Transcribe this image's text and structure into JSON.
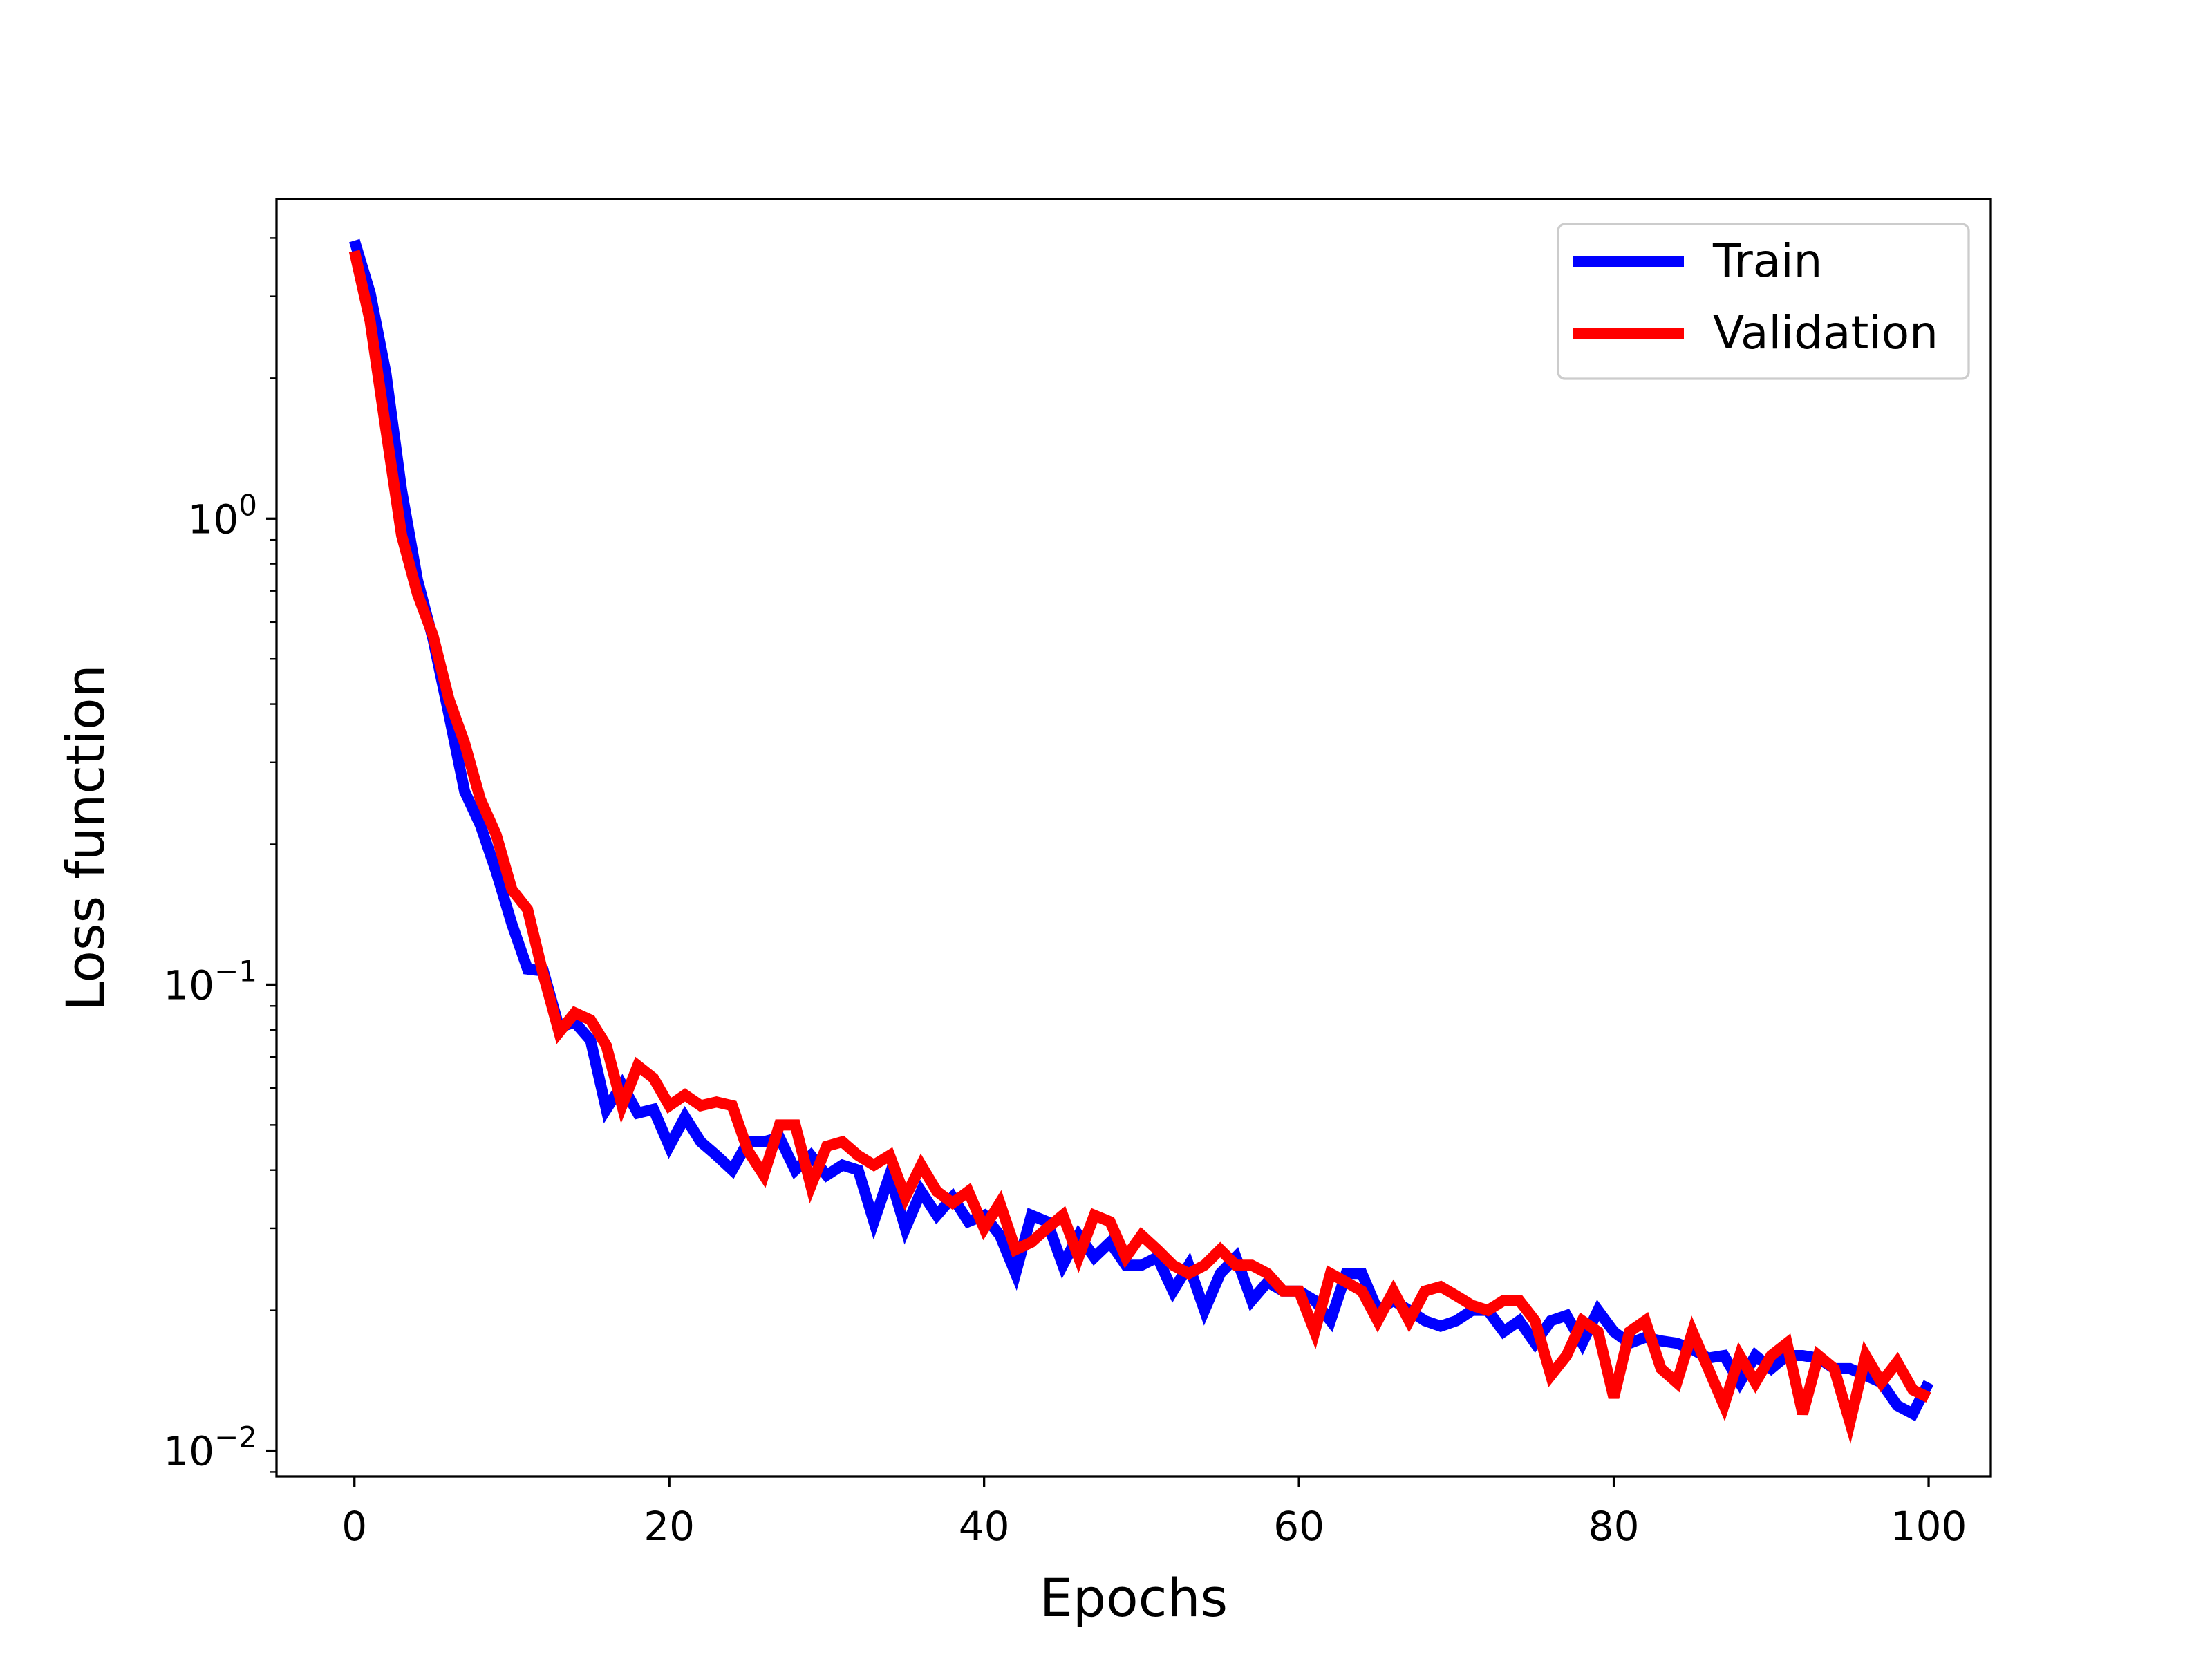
{
  "chart_data": {
    "type": "line",
    "title": "",
    "xlabel": "Epochs",
    "ylabel": "Loss function",
    "xlim": [
      -4.95,
      103.95
    ],
    "ylim": [
      0.0088,
      4.85
    ],
    "yscale": "log",
    "xticks": [
      0,
      20,
      40,
      60,
      80,
      100
    ],
    "xtick_labels": [
      "0",
      "20",
      "40",
      "60",
      "80",
      "100"
    ],
    "yticks_major": [
      {
        "value": 1,
        "base": "10",
        "exp": "0"
      },
      {
        "value": 0.1,
        "base": "10",
        "exp": "−1"
      },
      {
        "value": 0.01,
        "base": "10",
        "exp": "−2"
      }
    ],
    "legend_position": "upper right",
    "grid": false,
    "series": [
      {
        "name": "Train",
        "color": "#0000ff",
        "x_start": 0,
        "values": [
          3.95,
          3.05,
          2.05,
          1.15,
          0.74,
          0.55,
          0.38,
          0.26,
          0.22,
          0.175,
          0.135,
          0.108,
          0.107,
          0.081,
          0.083,
          0.076,
          0.054,
          0.061,
          0.053,
          0.054,
          0.045,
          0.052,
          0.046,
          0.043,
          0.04,
          0.046,
          0.046,
          0.047,
          0.04,
          0.043,
          0.039,
          0.041,
          0.04,
          0.031,
          0.039,
          0.03,
          0.036,
          0.032,
          0.035,
          0.031,
          0.032,
          0.029,
          0.024,
          0.032,
          0.031,
          0.025,
          0.029,
          0.026,
          0.028,
          0.025,
          0.025,
          0.026,
          0.022,
          0.025,
          0.02,
          0.024,
          0.026,
          0.021,
          0.023,
          0.022,
          0.022,
          0.021,
          0.019,
          0.024,
          0.024,
          0.02,
          0.021,
          0.02,
          0.019,
          0.0185,
          0.019,
          0.02,
          0.02,
          0.018,
          0.019,
          0.017,
          0.019,
          0.0195,
          0.017,
          0.02,
          0.018,
          0.017,
          0.0175,
          0.0172,
          0.017,
          0.0165,
          0.0158,
          0.016,
          0.014,
          0.016,
          0.015,
          0.016,
          0.016,
          0.0158,
          0.015,
          0.015,
          0.0145,
          0.014,
          0.0125,
          0.012,
          0.014
        ]
      },
      {
        "name": "Validation",
        "color": "#ff0000",
        "x_start": 0,
        "values": [
          3.75,
          2.65,
          1.55,
          0.92,
          0.69,
          0.56,
          0.41,
          0.33,
          0.25,
          0.21,
          0.16,
          0.145,
          0.105,
          0.079,
          0.087,
          0.084,
          0.074,
          0.055,
          0.067,
          0.063,
          0.055,
          0.058,
          0.055,
          0.056,
          0.055,
          0.044,
          0.039,
          0.05,
          0.05,
          0.037,
          0.045,
          0.046,
          0.043,
          0.041,
          0.043,
          0.035,
          0.041,
          0.036,
          0.034,
          0.036,
          0.03,
          0.034,
          0.027,
          0.028,
          0.03,
          0.032,
          0.026,
          0.032,
          0.031,
          0.026,
          0.029,
          0.027,
          0.025,
          0.024,
          0.025,
          0.027,
          0.025,
          0.025,
          0.024,
          0.022,
          0.022,
          0.018,
          0.024,
          0.023,
          0.022,
          0.019,
          0.022,
          0.019,
          0.022,
          0.0225,
          0.0215,
          0.0205,
          0.02,
          0.021,
          0.021,
          0.019,
          0.0145,
          0.016,
          0.019,
          0.018,
          0.013,
          0.018,
          0.019,
          0.015,
          0.014,
          0.018,
          0.015,
          0.0125,
          0.016,
          0.014,
          0.016,
          0.017,
          0.012,
          0.016,
          0.015,
          0.0115,
          0.016,
          0.014,
          0.0155,
          0.0135,
          0.013
        ]
      }
    ]
  }
}
